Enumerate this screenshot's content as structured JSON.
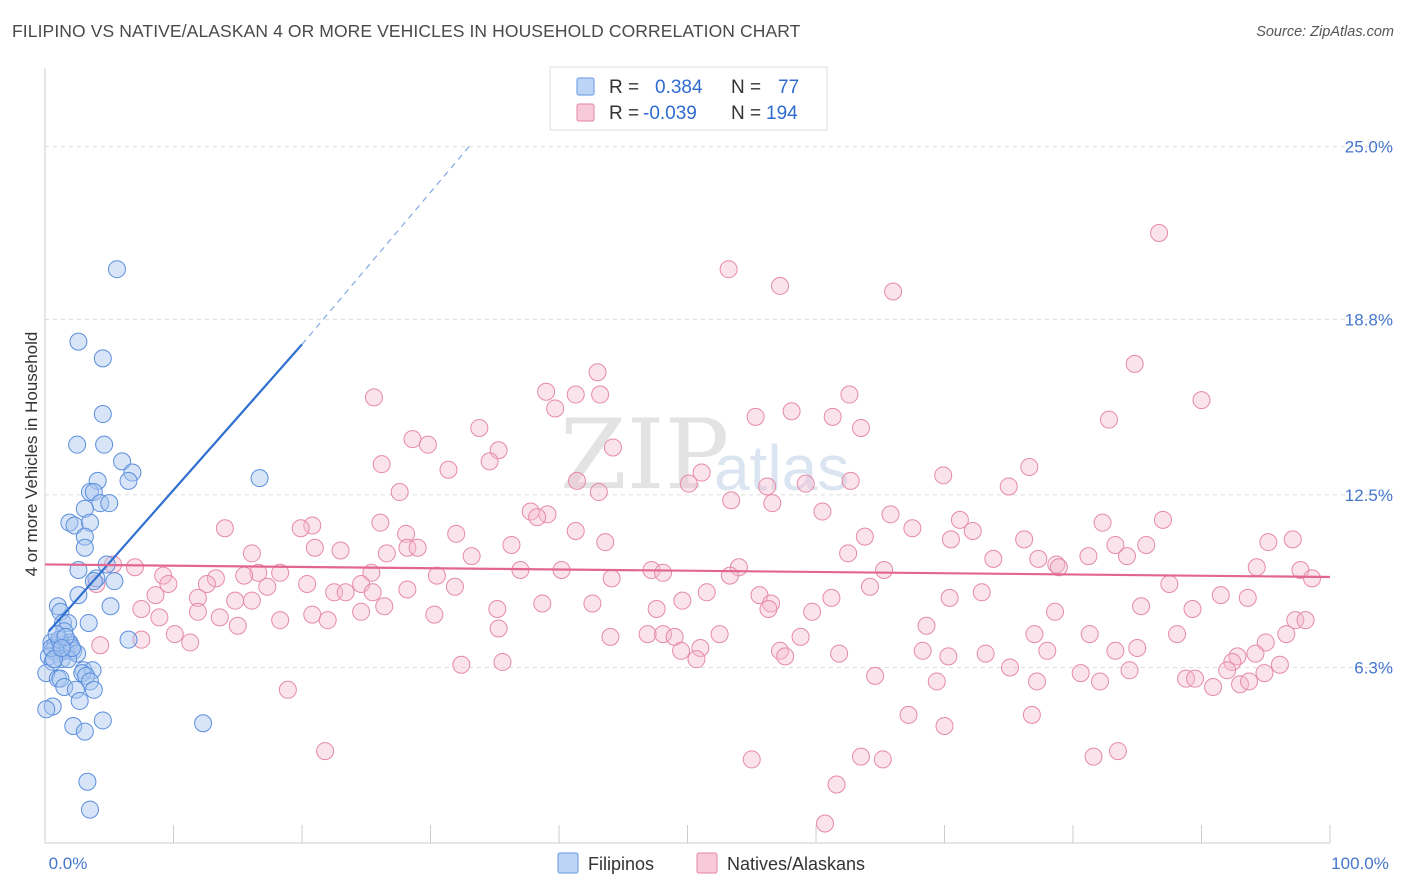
{
  "title": "FILIPINO VS NATIVE/ALASKAN 4 OR MORE VEHICLES IN HOUSEHOLD CORRELATION CHART",
  "source": "Source: ZipAtlas.com",
  "watermark": {
    "zip": "ZIP",
    "atlas": "atlas"
  },
  "legend": {
    "rows": [
      {
        "r_label": "R =",
        "r_value": "0.384",
        "n_label": "N =",
        "n_value": "77",
        "color": "#7aa6e8",
        "fill": "#bcd4f6"
      },
      {
        "r_label": "R =",
        "r_value": "-0.039",
        "n_label": "N =",
        "n_value": "194",
        "color": "#e896b2",
        "fill": "#f8c9d8"
      }
    ]
  },
  "bottom_legend": {
    "filipinos": "Filipinos",
    "natives": "Natives/Alaskans"
  },
  "chart_data": {
    "type": "scatter",
    "title": "FILIPINO VS NATIVE/ALASKAN 4 OR MORE VEHICLES IN HOUSEHOLD CORRELATION CHART",
    "xlabel": "",
    "ylabel": "4 or more Vehicles in Household",
    "xlim": [
      0,
      100
    ],
    "ylim": [
      0,
      27.5
    ],
    "x_tick_labels": [
      "0.0%",
      "100.0%"
    ],
    "y_ticks": [
      6.3,
      12.5,
      18.8,
      25.0
    ],
    "y_tick_labels": [
      "6.3%",
      "12.5%",
      "18.8%",
      "25.0%"
    ],
    "grid": true,
    "legend_position": "top-center",
    "series": [
      {
        "name": "Filipinos",
        "color": "#5b8fdc",
        "fill": "rgba(168,198,240,0.45)",
        "trend": {
          "x0": 0.3,
          "y0": 7.6,
          "x1": 20.0,
          "y1": 17.9,
          "dash_to_x": 33.0,
          "dash_to_y": 25.0,
          "color": "#2f6fd0"
        },
        "points": [
          [
            5.6,
            20.6
          ],
          [
            2.6,
            18.0
          ],
          [
            4.5,
            17.4
          ],
          [
            4.5,
            15.4
          ],
          [
            2.5,
            14.3
          ],
          [
            4.6,
            14.3
          ],
          [
            6.0,
            13.7
          ],
          [
            4.1,
            13.0
          ],
          [
            6.8,
            13.3
          ],
          [
            6.5,
            13.0
          ],
          [
            16.7,
            13.1
          ],
          [
            3.5,
            12.6
          ],
          [
            3.8,
            12.6
          ],
          [
            4.3,
            12.2
          ],
          [
            5.0,
            12.2
          ],
          [
            3.1,
            12.0
          ],
          [
            1.9,
            11.5
          ],
          [
            2.3,
            11.4
          ],
          [
            3.5,
            11.5
          ],
          [
            3.1,
            11.0
          ],
          [
            3.1,
            10.6
          ],
          [
            2.6,
            9.8
          ],
          [
            4.8,
            10.0
          ],
          [
            4.0,
            9.5
          ],
          [
            3.8,
            9.4
          ],
          [
            5.4,
            9.4
          ],
          [
            2.6,
            8.9
          ],
          [
            1.0,
            8.5
          ],
          [
            1.2,
            8.3
          ],
          [
            5.1,
            8.5
          ],
          [
            1.4,
            7.9
          ],
          [
            1.8,
            7.9
          ],
          [
            3.4,
            7.9
          ],
          [
            1.5,
            7.6
          ],
          [
            6.5,
            7.3
          ],
          [
            1.9,
            7.2
          ],
          [
            0.5,
            7.2
          ],
          [
            0.8,
            7.1
          ],
          [
            1.3,
            7.1
          ],
          [
            2.0,
            7.1
          ],
          [
            0.6,
            6.9
          ],
          [
            1.4,
            6.9
          ],
          [
            2.2,
            6.9
          ],
          [
            1.6,
            6.9
          ],
          [
            1.0,
            6.8
          ],
          [
            0.3,
            6.7
          ],
          [
            1.3,
            6.6
          ],
          [
            0.6,
            6.5
          ],
          [
            3.0,
            6.2
          ],
          [
            3.7,
            6.2
          ],
          [
            2.9,
            6.1
          ],
          [
            0.1,
            6.1
          ],
          [
            3.2,
            6.0
          ],
          [
            1.0,
            5.9
          ],
          [
            1.2,
            5.9
          ],
          [
            3.5,
            5.8
          ],
          [
            1.5,
            5.6
          ],
          [
            2.4,
            5.5
          ],
          [
            3.8,
            5.5
          ],
          [
            2.7,
            5.1
          ],
          [
            0.6,
            4.9
          ],
          [
            0.1,
            4.8
          ],
          [
            4.5,
            4.4
          ],
          [
            12.3,
            4.3
          ],
          [
            2.2,
            4.2
          ],
          [
            3.1,
            4.0
          ],
          [
            3.3,
            2.2
          ],
          [
            3.5,
            1.2
          ],
          [
            0.5,
            7.0
          ],
          [
            1.1,
            7.3
          ],
          [
            2.5,
            6.8
          ],
          [
            1.8,
            6.6
          ],
          [
            0.9,
            7.5
          ],
          [
            2.1,
            7.0
          ],
          [
            1.6,
            7.4
          ],
          [
            0.7,
            6.6
          ],
          [
            1.3,
            7.0
          ]
        ]
      },
      {
        "name": "Natives/Alaskans",
        "color": "#e58aaa",
        "fill": "rgba(246,184,204,0.40)",
        "trend": {
          "x0": 0.0,
          "y0": 10.0,
          "x1": 100.0,
          "y1": 9.55,
          "color": "#e26690"
        },
        "points": [
          [
            86.7,
            21.9
          ],
          [
            53.2,
            20.6
          ],
          [
            57.2,
            20.0
          ],
          [
            66.0,
            19.8
          ],
          [
            84.8,
            17.2
          ],
          [
            43.0,
            16.9
          ],
          [
            43.2,
            16.1
          ],
          [
            25.6,
            16.0
          ],
          [
            41.3,
            16.1
          ],
          [
            39.0,
            16.2
          ],
          [
            62.6,
            16.1
          ],
          [
            90.0,
            15.9
          ],
          [
            39.7,
            15.6
          ],
          [
            58.1,
            15.5
          ],
          [
            55.3,
            15.3
          ],
          [
            61.3,
            15.3
          ],
          [
            33.8,
            14.9
          ],
          [
            63.5,
            14.9
          ],
          [
            82.8,
            15.2
          ],
          [
            28.6,
            14.5
          ],
          [
            29.8,
            14.3
          ],
          [
            35.3,
            14.1
          ],
          [
            44.2,
            14.2
          ],
          [
            26.2,
            13.6
          ],
          [
            34.6,
            13.7
          ],
          [
            31.4,
            13.4
          ],
          [
            51.1,
            13.3
          ],
          [
            76.6,
            13.5
          ],
          [
            62.7,
            13.0
          ],
          [
            41.4,
            13.0
          ],
          [
            50.1,
            12.9
          ],
          [
            59.2,
            12.9
          ],
          [
            56.2,
            12.8
          ],
          [
            75.0,
            12.8
          ],
          [
            69.9,
            13.2
          ],
          [
            27.6,
            12.6
          ],
          [
            43.1,
            12.6
          ],
          [
            56.6,
            12.2
          ],
          [
            53.4,
            12.3
          ],
          [
            37.8,
            11.9
          ],
          [
            39.1,
            11.8
          ],
          [
            38.3,
            11.7
          ],
          [
            60.5,
            11.9
          ],
          [
            65.8,
            11.8
          ],
          [
            71.2,
            11.6
          ],
          [
            63.8,
            11.0
          ],
          [
            82.3,
            11.5
          ],
          [
            26.1,
            11.5
          ],
          [
            20.8,
            11.4
          ],
          [
            14.0,
            11.3
          ],
          [
            19.9,
            11.3
          ],
          [
            28.1,
            11.1
          ],
          [
            32.0,
            11.1
          ],
          [
            41.3,
            11.2
          ],
          [
            87.0,
            11.6
          ],
          [
            72.2,
            11.2
          ],
          [
            67.5,
            11.3
          ],
          [
            76.2,
            10.9
          ],
          [
            70.5,
            10.9
          ],
          [
            85.7,
            10.7
          ],
          [
            97.1,
            10.9
          ],
          [
            95.2,
            10.8
          ],
          [
            83.3,
            10.7
          ],
          [
            84.2,
            10.3
          ],
          [
            21.0,
            10.6
          ],
          [
            28.2,
            10.6
          ],
          [
            23.0,
            10.5
          ],
          [
            29.0,
            10.6
          ],
          [
            33.2,
            10.3
          ],
          [
            26.6,
            10.4
          ],
          [
            16.1,
            10.4
          ],
          [
            36.3,
            10.7
          ],
          [
            73.8,
            10.2
          ],
          [
            77.3,
            10.2
          ],
          [
            81.2,
            10.3
          ],
          [
            78.7,
            10.0
          ],
          [
            16.6,
            9.7
          ],
          [
            9.2,
            9.6
          ],
          [
            13.3,
            9.5
          ],
          [
            15.5,
            9.6
          ],
          [
            18.3,
            9.7
          ],
          [
            5.3,
            10.0
          ],
          [
            7.0,
            9.9
          ],
          [
            30.5,
            9.6
          ],
          [
            40.2,
            9.8
          ],
          [
            47.2,
            9.8
          ],
          [
            48.1,
            9.7
          ],
          [
            54.0,
            9.9
          ],
          [
            65.3,
            9.8
          ],
          [
            78.9,
            9.9
          ],
          [
            94.3,
            9.9
          ],
          [
            97.7,
            9.8
          ],
          [
            98.6,
            9.5
          ],
          [
            62.5,
            10.4
          ],
          [
            43.6,
            10.8
          ],
          [
            37.0,
            9.8
          ],
          [
            25.4,
            9.7
          ],
          [
            53.3,
            9.6
          ],
          [
            44.1,
            9.5
          ],
          [
            64.2,
            9.2
          ],
          [
            24.6,
            9.3
          ],
          [
            12.6,
            9.3
          ],
          [
            11.9,
            8.8
          ],
          [
            20.4,
            9.3
          ],
          [
            31.9,
            9.2
          ],
          [
            9.6,
            9.3
          ],
          [
            4.0,
            9.3
          ],
          [
            8.6,
            8.9
          ],
          [
            17.3,
            9.2
          ],
          [
            28.2,
            9.1
          ],
          [
            25.5,
            9.0
          ],
          [
            22.5,
            9.0
          ],
          [
            23.4,
            9.0
          ],
          [
            72.9,
            9.0
          ],
          [
            91.5,
            8.9
          ],
          [
            87.5,
            9.3
          ],
          [
            70.4,
            8.8
          ],
          [
            51.5,
            9.0
          ],
          [
            55.6,
            8.9
          ],
          [
            61.2,
            8.8
          ],
          [
            14.8,
            8.7
          ],
          [
            16.1,
            8.7
          ],
          [
            20.8,
            8.2
          ],
          [
            24.6,
            8.3
          ],
          [
            18.3,
            8.0
          ],
          [
            7.5,
            8.4
          ],
          [
            8.9,
            8.1
          ],
          [
            11.9,
            8.3
          ],
          [
            10.1,
            7.5
          ],
          [
            13.6,
            8.1
          ],
          [
            15.0,
            7.8
          ],
          [
            22.0,
            8.0
          ],
          [
            26.4,
            8.5
          ],
          [
            30.3,
            8.2
          ],
          [
            35.2,
            8.4
          ],
          [
            42.6,
            8.6
          ],
          [
            49.6,
            8.7
          ],
          [
            38.7,
            8.6
          ],
          [
            56.5,
            8.6
          ],
          [
            78.6,
            8.3
          ],
          [
            47.6,
            8.4
          ],
          [
            56.3,
            8.4
          ],
          [
            59.7,
            8.3
          ],
          [
            85.3,
            8.5
          ],
          [
            89.3,
            8.4
          ],
          [
            93.6,
            8.8
          ],
          [
            97.3,
            8.0
          ],
          [
            98.1,
            8.0
          ],
          [
            68.6,
            7.8
          ],
          [
            35.3,
            7.7
          ],
          [
            46.9,
            7.5
          ],
          [
            48.1,
            7.5
          ],
          [
            49.0,
            7.4
          ],
          [
            52.5,
            7.5
          ],
          [
            58.8,
            7.4
          ],
          [
            77.0,
            7.5
          ],
          [
            81.3,
            7.5
          ],
          [
            88.1,
            7.5
          ],
          [
            96.6,
            7.5
          ],
          [
            95.0,
            7.2
          ],
          [
            11.3,
            7.2
          ],
          [
            7.5,
            7.3
          ],
          [
            4.3,
            7.1
          ],
          [
            44.0,
            7.4
          ],
          [
            49.5,
            6.9
          ],
          [
            51.0,
            7.0
          ],
          [
            57.2,
            6.9
          ],
          [
            61.8,
            6.8
          ],
          [
            68.3,
            6.9
          ],
          [
            70.3,
            6.7
          ],
          [
            73.2,
            6.8
          ],
          [
            78.0,
            6.9
          ],
          [
            83.3,
            6.9
          ],
          [
            85.0,
            7.0
          ],
          [
            92.8,
            6.7
          ],
          [
            94.2,
            6.8
          ],
          [
            92.4,
            6.5
          ],
          [
            35.6,
            6.5
          ],
          [
            32.4,
            6.4
          ],
          [
            50.7,
            6.6
          ],
          [
            57.6,
            6.7
          ],
          [
            75.1,
            6.3
          ],
          [
            84.4,
            6.2
          ],
          [
            92.0,
            6.2
          ],
          [
            94.9,
            6.1
          ],
          [
            96.1,
            6.4
          ],
          [
            80.6,
            6.1
          ],
          [
            64.6,
            6.0
          ],
          [
            69.4,
            5.8
          ],
          [
            77.2,
            5.8
          ],
          [
            82.1,
            5.8
          ],
          [
            88.8,
            5.9
          ],
          [
            89.5,
            5.9
          ],
          [
            90.9,
            5.6
          ],
          [
            93.0,
            5.7
          ],
          [
            93.7,
            5.8
          ],
          [
            18.9,
            5.5
          ],
          [
            67.2,
            4.6
          ],
          [
            76.8,
            4.6
          ],
          [
            70.0,
            4.2
          ],
          [
            83.5,
            3.3
          ],
          [
            65.2,
            3.0
          ],
          [
            63.5,
            3.1
          ],
          [
            81.6,
            3.1
          ],
          [
            61.6,
            2.1
          ],
          [
            60.7,
            0.7
          ],
          [
            55.0,
            3.0
          ],
          [
            21.8,
            3.3
          ]
        ]
      }
    ]
  }
}
